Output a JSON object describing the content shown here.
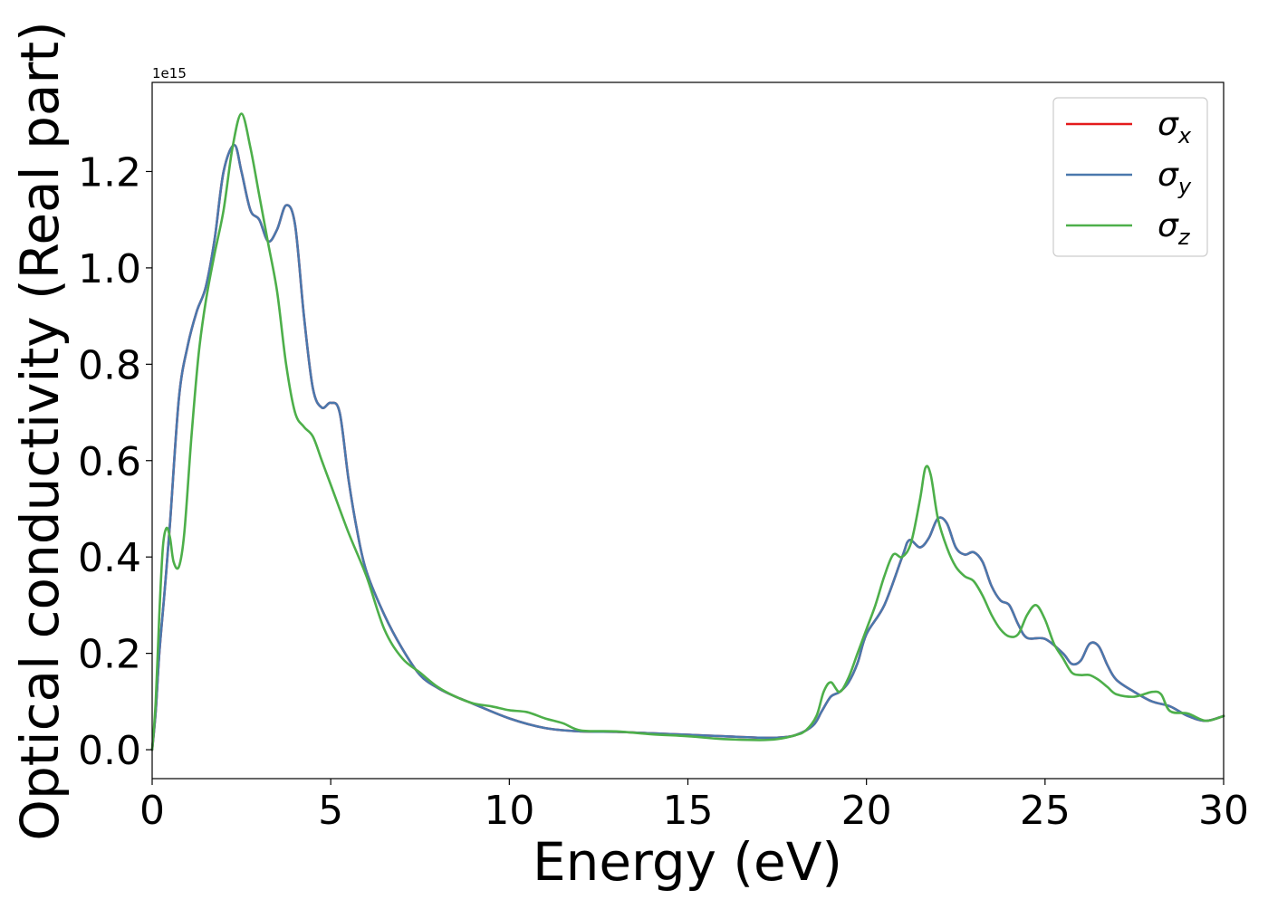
{
  "chart_data": {
    "type": "line",
    "title": "",
    "xlabel": "Energy (eV)",
    "ylabel": "Optical conductivity (Real part)",
    "y_offset_label": "1e15",
    "xlim": [
      0,
      30
    ],
    "ylim": [
      -0.06,
      1.385
    ],
    "xticks": [
      0,
      5,
      10,
      15,
      20,
      25,
      30
    ],
    "yticks": [
      0.0,
      0.2,
      0.4,
      0.6,
      0.8,
      1.0,
      1.2
    ],
    "xtick_labels": [
      "0",
      "5",
      "10",
      "15",
      "20",
      "25",
      "30"
    ],
    "ytick_labels": [
      "0.0",
      "0.2",
      "0.4",
      "0.6",
      "0.8",
      "1.0",
      "1.2"
    ],
    "grid": false,
    "legend_position": "top-right",
    "legend": [
      {
        "base": "σ",
        "sub": "x",
        "color": "#e41a1c"
      },
      {
        "base": "σ",
        "sub": "y",
        "color": "#4a78ad"
      },
      {
        "base": "σ",
        "sub": "z",
        "color": "#4daf4a"
      }
    ],
    "series": [
      {
        "name": "σx",
        "color": "#e41a1c",
        "x": [
          0,
          0.1,
          0.2,
          0.35,
          0.5,
          0.75,
          1.0,
          1.25,
          1.5,
          1.75,
          2.0,
          2.3,
          2.5,
          2.75,
          3.0,
          3.25,
          3.5,
          3.75,
          4.0,
          4.25,
          4.5,
          4.75,
          5.0,
          5.25,
          5.5,
          5.75,
          6.0,
          6.5,
          7.0,
          7.5,
          8.0,
          8.5,
          9.0,
          10.0,
          11.0,
          12.0,
          13.0,
          14.0,
          15.0,
          16.0,
          17.0,
          17.5,
          18.0,
          18.5,
          18.75,
          19.0,
          19.25,
          19.5,
          19.75,
          20.0,
          20.5,
          21.0,
          21.2,
          21.5,
          21.75,
          22.0,
          22.25,
          22.5,
          22.75,
          23.0,
          23.25,
          23.5,
          23.75,
          24.0,
          24.25,
          24.5,
          25.0,
          25.5,
          25.75,
          26.0,
          26.25,
          26.5,
          26.75,
          27.0,
          27.5,
          28.0,
          28.5,
          29.0,
          29.5,
          30.0
        ],
        "y": [
          0.0,
          0.08,
          0.2,
          0.33,
          0.47,
          0.73,
          0.84,
          0.91,
          0.96,
          1.06,
          1.2,
          1.255,
          1.2,
          1.12,
          1.1,
          1.055,
          1.08,
          1.13,
          1.09,
          0.9,
          0.75,
          0.71,
          0.72,
          0.7,
          0.56,
          0.45,
          0.37,
          0.28,
          0.21,
          0.155,
          0.128,
          0.11,
          0.095,
          0.065,
          0.045,
          0.038,
          0.037,
          0.034,
          0.031,
          0.028,
          0.025,
          0.025,
          0.03,
          0.05,
          0.08,
          0.11,
          0.12,
          0.14,
          0.18,
          0.24,
          0.3,
          0.4,
          0.435,
          0.42,
          0.44,
          0.48,
          0.47,
          0.42,
          0.405,
          0.41,
          0.39,
          0.34,
          0.31,
          0.3,
          0.26,
          0.232,
          0.23,
          0.2,
          0.178,
          0.185,
          0.22,
          0.215,
          0.175,
          0.145,
          0.12,
          0.1,
          0.09,
          0.07,
          0.06,
          0.07
        ]
      },
      {
        "name": "σy",
        "color": "#4a78ad",
        "x": [
          0,
          0.1,
          0.2,
          0.35,
          0.5,
          0.75,
          1.0,
          1.25,
          1.5,
          1.75,
          2.0,
          2.3,
          2.5,
          2.75,
          3.0,
          3.25,
          3.5,
          3.75,
          4.0,
          4.25,
          4.5,
          4.75,
          5.0,
          5.25,
          5.5,
          5.75,
          6.0,
          6.5,
          7.0,
          7.5,
          8.0,
          8.5,
          9.0,
          10.0,
          11.0,
          12.0,
          13.0,
          14.0,
          15.0,
          16.0,
          17.0,
          17.5,
          18.0,
          18.5,
          18.75,
          19.0,
          19.25,
          19.5,
          19.75,
          20.0,
          20.5,
          21.0,
          21.2,
          21.5,
          21.75,
          22.0,
          22.25,
          22.5,
          22.75,
          23.0,
          23.25,
          23.5,
          23.75,
          24.0,
          24.25,
          24.5,
          25.0,
          25.5,
          25.75,
          26.0,
          26.25,
          26.5,
          26.75,
          27.0,
          27.5,
          28.0,
          28.5,
          29.0,
          29.5,
          30.0
        ],
        "y": [
          0.0,
          0.08,
          0.2,
          0.33,
          0.47,
          0.73,
          0.84,
          0.91,
          0.96,
          1.06,
          1.2,
          1.255,
          1.2,
          1.12,
          1.1,
          1.055,
          1.08,
          1.13,
          1.09,
          0.9,
          0.75,
          0.71,
          0.72,
          0.7,
          0.56,
          0.45,
          0.37,
          0.28,
          0.21,
          0.155,
          0.128,
          0.11,
          0.095,
          0.065,
          0.045,
          0.038,
          0.037,
          0.034,
          0.031,
          0.028,
          0.025,
          0.025,
          0.03,
          0.05,
          0.08,
          0.11,
          0.12,
          0.14,
          0.18,
          0.24,
          0.3,
          0.4,
          0.435,
          0.42,
          0.44,
          0.48,
          0.47,
          0.42,
          0.405,
          0.41,
          0.39,
          0.34,
          0.31,
          0.3,
          0.26,
          0.232,
          0.23,
          0.2,
          0.178,
          0.185,
          0.22,
          0.215,
          0.175,
          0.145,
          0.12,
          0.1,
          0.09,
          0.07,
          0.06,
          0.07
        ]
      },
      {
        "name": "σz",
        "color": "#4daf4a",
        "x": [
          0,
          0.1,
          0.2,
          0.3,
          0.4,
          0.5,
          0.6,
          0.75,
          0.9,
          1.1,
          1.3,
          1.5,
          1.75,
          2.0,
          2.25,
          2.5,
          2.75,
          3.0,
          3.25,
          3.5,
          3.75,
          4.0,
          4.25,
          4.5,
          4.75,
          5.0,
          5.5,
          6.0,
          6.5,
          7.0,
          7.5,
          8.0,
          8.5,
          9.0,
          9.5,
          10.0,
          10.5,
          11.0,
          11.5,
          12.0,
          13.0,
          14.0,
          15.0,
          16.0,
          17.0,
          17.5,
          18.0,
          18.3,
          18.6,
          18.8,
          19.0,
          19.25,
          19.5,
          19.75,
          20.0,
          20.25,
          20.5,
          20.75,
          21.0,
          21.25,
          21.5,
          21.65,
          21.8,
          22.0,
          22.25,
          22.5,
          22.75,
          23.0,
          23.25,
          23.5,
          23.75,
          24.0,
          24.25,
          24.5,
          24.75,
          25.0,
          25.25,
          25.5,
          25.75,
          26.0,
          26.25,
          26.5,
          26.75,
          27.0,
          27.5,
          28.0,
          28.25,
          28.5,
          29.0,
          29.5,
          30.0
        ],
        "y": [
          0.0,
          0.1,
          0.28,
          0.42,
          0.46,
          0.44,
          0.39,
          0.38,
          0.45,
          0.65,
          0.82,
          0.93,
          1.03,
          1.12,
          1.25,
          1.32,
          1.25,
          1.15,
          1.05,
          0.95,
          0.8,
          0.7,
          0.67,
          0.65,
          0.6,
          0.55,
          0.45,
          0.36,
          0.25,
          0.19,
          0.16,
          0.13,
          0.11,
          0.096,
          0.09,
          0.082,
          0.078,
          0.065,
          0.055,
          0.04,
          0.038,
          0.032,
          0.028,
          0.022,
          0.02,
          0.022,
          0.03,
          0.04,
          0.07,
          0.12,
          0.14,
          0.12,
          0.15,
          0.2,
          0.25,
          0.3,
          0.36,
          0.405,
          0.4,
          0.43,
          0.52,
          0.585,
          0.57,
          0.48,
          0.42,
          0.38,
          0.36,
          0.35,
          0.32,
          0.28,
          0.25,
          0.235,
          0.24,
          0.28,
          0.3,
          0.27,
          0.22,
          0.19,
          0.16,
          0.155,
          0.155,
          0.145,
          0.13,
          0.115,
          0.11,
          0.12,
          0.115,
          0.08,
          0.075,
          0.06,
          0.07
        ]
      }
    ]
  }
}
